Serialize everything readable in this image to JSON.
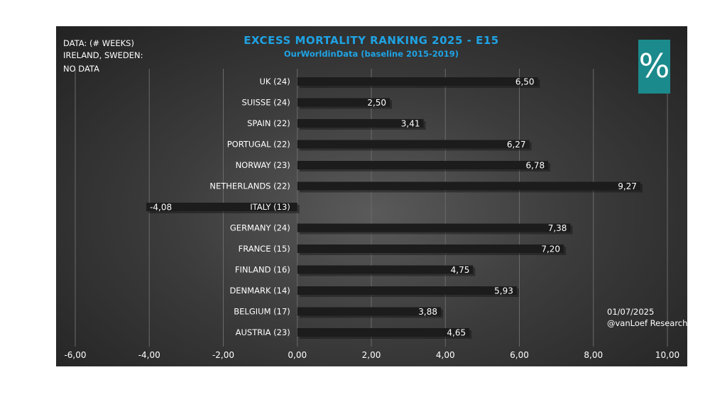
{
  "notes": {
    "line1": "DATA: (# WEEKS)",
    "line2": "IRELAND, SWEDEN:",
    "line3": "NO DATA"
  },
  "badge": {
    "symbol": "%",
    "color": "#1b8a8c"
  },
  "credit": {
    "date": "01/07/2025",
    "author": "@vanLoef Research"
  },
  "colors": {
    "title": "#1fa3e4",
    "bar": "#1c1c1c",
    "background": "#3c3c3c"
  },
  "chart_data": {
    "type": "bar",
    "orientation": "horizontal",
    "title": "EXCESS MORTALITY RANKING 2025 - E15",
    "subtitle": "OurWorldinData (baseline 2015-2019)",
    "categories": [
      "UK (24)",
      "SUISSE (24)",
      "SPAIN (22)",
      "PORTUGAL (22)",
      "NORWAY (23)",
      "NETHERLANDS (22)",
      "ITALY (13)",
      "GERMANY (24)",
      "FRANCE (15)",
      "FINLAND (16)",
      "DENMARK (14)",
      "BELGIUM (17)",
      "AUSTRIA (23)"
    ],
    "values": [
      6.5,
      2.5,
      3.41,
      6.27,
      6.78,
      9.27,
      -4.08,
      7.38,
      7.2,
      4.75,
      5.93,
      3.88,
      4.65
    ],
    "value_labels": [
      "6,50",
      "2,50",
      "3,41",
      "6,27",
      "6,78",
      "9,27",
      "-4,08",
      "7,38",
      "7,20",
      "4,75",
      "5,93",
      "3,88",
      "4,65"
    ],
    "xlim": [
      -6,
      10
    ],
    "xticks": [
      -6,
      -4,
      -2,
      0,
      2,
      4,
      6,
      8,
      10
    ],
    "xtick_labels": [
      "-6,00",
      "-4,00",
      "-2,00",
      "0,00",
      "2,00",
      "4,00",
      "6,00",
      "8,00",
      "10,00"
    ],
    "grid": true,
    "legend": "none"
  }
}
